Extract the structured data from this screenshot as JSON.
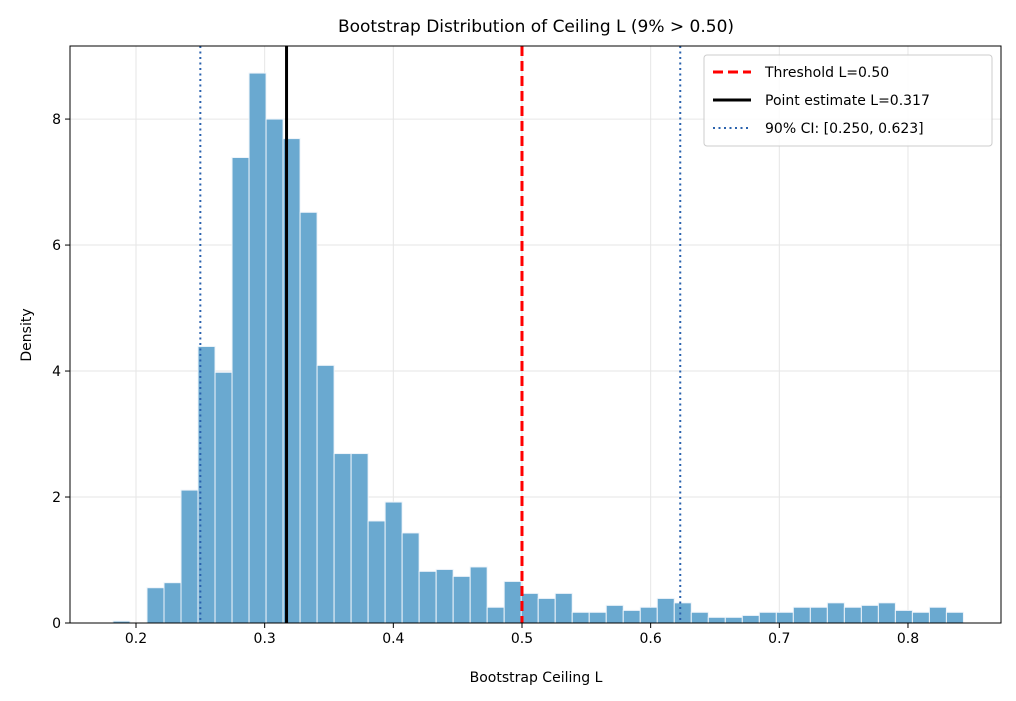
{
  "chart_data": {
    "type": "bar",
    "title": "Bootstrap Distribution of Ceiling L (9% > 0.50)",
    "xlabel": "Bootstrap Ceiling L",
    "ylabel": "Density",
    "xlim": [
      0.1487,
      0.8723
    ],
    "ylim": [
      0,
      9.16
    ],
    "grid": true,
    "legend_position": "top-right",
    "x_ticks": [
      "0.2",
      "0.3",
      "0.4",
      "0.5",
      "0.6",
      "0.7",
      "0.8"
    ],
    "y_ticks": [
      "0",
      "2",
      "4",
      "6",
      "8"
    ],
    "bins": {
      "start": 0.1821,
      "width": 0.01322,
      "values": [
        0.03,
        0,
        0.56,
        0.64,
        2.11,
        4.39,
        3.98,
        7.39,
        8.73,
        8.0,
        7.69,
        6.52,
        4.09,
        2.69,
        2.69,
        1.62,
        1.92,
        1.43,
        0.82,
        0.85,
        0.74,
        0.89,
        0.25,
        0.66,
        0.47,
        0.39,
        0.47,
        0.17,
        0.17,
        0.28,
        0.2,
        0.25,
        0.39,
        0.32,
        0.17,
        0.09,
        0.09,
        0.12,
        0.17,
        0.17,
        0.25,
        0.25,
        0.32,
        0.25,
        0.28,
        0.32,
        0.2,
        0.17,
        0.25,
        0.17
      ]
    },
    "bar_color": "#6aa9d0",
    "lines": [
      {
        "label": "Threshold L=0.50",
        "x": 0.5,
        "color": "#ff0000",
        "style": "dashed"
      },
      {
        "label": "Point estimate L=0.317",
        "x": 0.317,
        "color": "#000000",
        "style": "solid"
      },
      {
        "label": "90% CI: [0.250, 0.623]",
        "x": [
          0.25,
          0.623
        ],
        "color": "#2a62ad",
        "style": "dotted"
      }
    ]
  }
}
